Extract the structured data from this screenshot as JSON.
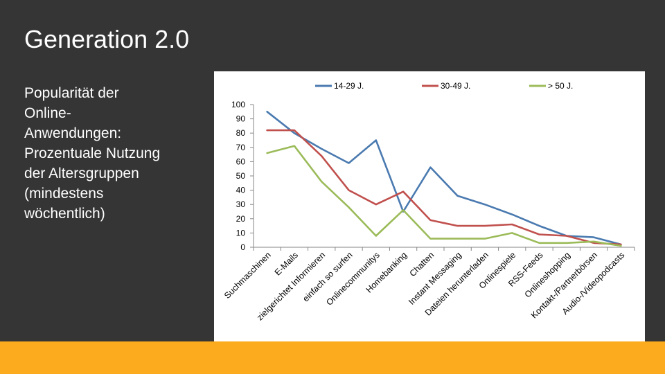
{
  "slide": {
    "title": "Generation 2.0",
    "body": "Popularität der Online-Anwendungen: Prozentuale Nutzung der Altersgruppen (mindestens wöchentlich)",
    "accent_color": "#fbab1d",
    "background_color": "#353535"
  },
  "chart_data": {
    "type": "line",
    "title": "",
    "xlabel": "",
    "ylabel": "",
    "ylim": [
      0,
      100
    ],
    "yticks": [
      0,
      10,
      20,
      30,
      40,
      50,
      60,
      70,
      80,
      90,
      100
    ],
    "grid": false,
    "legend_position": "top",
    "categories": [
      "Suchmaschinen",
      "E-Mails",
      "zielgerichtet Informieren",
      "einfach so surfen",
      "Onlinecommunitys",
      "Homebanking",
      "Chatten",
      "Instant Messaging",
      "Dateien herunterladen",
      "Onlinespiele",
      "RSS-Feeds",
      "Onlineshopping",
      "Kontakt-/Partnerbörsen",
      "Audio-/Videopodcasts"
    ],
    "series": [
      {
        "name": "14-29 J.",
        "color": "#4a7ab0",
        "values": [
          95,
          80,
          69,
          59,
          75,
          25,
          56,
          36,
          30,
          23,
          15,
          8,
          7,
          2
        ]
      },
      {
        "name": "30-49 J.",
        "color": "#c0504d",
        "values": [
          82,
          82,
          64,
          40,
          30,
          39,
          19,
          15,
          15,
          16,
          9,
          8,
          3,
          2
        ]
      },
      {
        "name": "> 50 J.",
        "color": "#9bbb59",
        "values": [
          66,
          71,
          46,
          28,
          8,
          26,
          6,
          6,
          6,
          10,
          3,
          3,
          4,
          1
        ]
      }
    ]
  }
}
